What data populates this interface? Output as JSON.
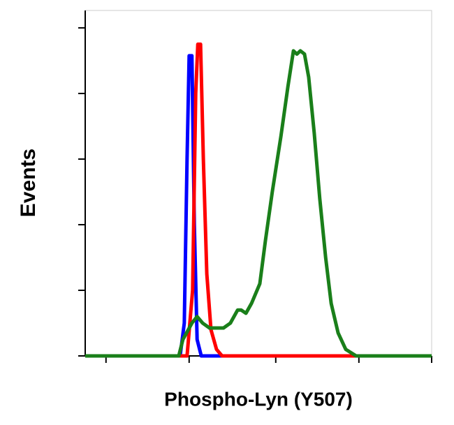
{
  "chart_data": {
    "type": "line",
    "xlabel": "Phospho-Lyn (Y507)",
    "ylabel": "Events",
    "xlim": [
      0,
      1000
    ],
    "ylim": [
      0,
      105.3
    ],
    "xticks": [
      60,
      300,
      550,
      790,
      1000
    ],
    "yticks": [
      0,
      20,
      40,
      60,
      80,
      100
    ],
    "series": [
      {
        "color": "#0000ff",
        "x": [
          0,
          274,
          286,
          294,
          300,
          308,
          315,
          323,
          335,
          1000
        ],
        "values": [
          0,
          0,
          10,
          60,
          91.5,
          91.5,
          40,
          5,
          0,
          0
        ]
      },
      {
        "color": "#ff0000",
        "x": [
          0,
          294,
          310,
          319,
          325,
          333,
          341,
          351,
          363,
          379,
          395,
          1000
        ],
        "values": [
          0,
          0,
          20,
          80,
          95,
          95,
          60,
          25,
          8,
          2,
          0,
          0
        ]
      },
      {
        "color": "#1a7f1a",
        "x": [
          0,
          270,
          282,
          308,
          323,
          339,
          359,
          399,
          419,
          440,
          450,
          464,
          480,
          504,
          520,
          540,
          565,
          585,
          601,
          611,
          621,
          633,
          645,
          661,
          677,
          694,
          710,
          730,
          752,
          782,
          1000
        ],
        "values": [
          0,
          0,
          5,
          10,
          12,
          10,
          8.5,
          8.5,
          10,
          14,
          14,
          13,
          16,
          22,
          35,
          50,
          67,
          82,
          93,
          92,
          93,
          92,
          85,
          68,
          48,
          30,
          16,
          7,
          2,
          0,
          0
        ]
      }
    ]
  }
}
